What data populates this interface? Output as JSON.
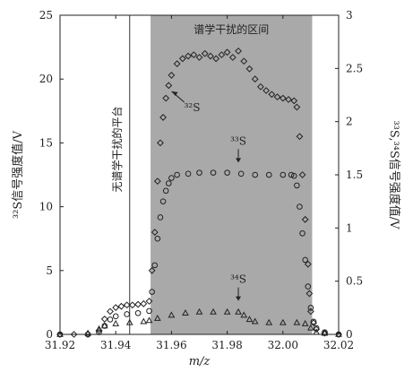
{
  "chart_data": {
    "type": "scatter",
    "xlabel": "m/z",
    "ylabel_left": "³²S信号强度值/V",
    "ylabel_right": "³³S,³⁴S信号强度值/V",
    "xlim": [
      31.92,
      32.02
    ],
    "ylim_left": [
      0,
      25
    ],
    "ylim_right": [
      0,
      3
    ],
    "x_ticks": [
      "31.92",
      "31.94",
      "31.96",
      "31.98",
      "32.00",
      "32.02"
    ],
    "y_left_ticks": [
      "0",
      "5",
      "10",
      "15",
      "20",
      "25"
    ],
    "y_right_ticks": [
      "0",
      "0.5",
      "1",
      "1.5",
      "2",
      "2.5",
      "3"
    ],
    "shaded_region": {
      "x0": 31.9525,
      "x1": 32.0105,
      "label": "谱学干扰的区间",
      "color": "#a9a9a9"
    },
    "vline": {
      "x": 31.945,
      "label": "无谱学干扰的平台"
    },
    "series": [
      {
        "name": "³²S",
        "axis": "left",
        "marker": "diamond",
        "points": [
          [
            31.92,
            0
          ],
          [
            31.925,
            0
          ],
          [
            31.93,
            0
          ],
          [
            31.934,
            0.3
          ],
          [
            31.936,
            1.2
          ],
          [
            31.938,
            1.8
          ],
          [
            31.94,
            2.1
          ],
          [
            31.942,
            2.2
          ],
          [
            31.944,
            2.3
          ],
          [
            31.946,
            2.3
          ],
          [
            31.948,
            2.35
          ],
          [
            31.95,
            2.4
          ],
          [
            31.952,
            2.6
          ],
          [
            31.953,
            5
          ],
          [
            31.954,
            8
          ],
          [
            31.955,
            12
          ],
          [
            31.956,
            15
          ],
          [
            31.957,
            17
          ],
          [
            31.958,
            18.5
          ],
          [
            31.959,
            19.5
          ],
          [
            31.96,
            20.3
          ],
          [
            31.962,
            21.2
          ],
          [
            31.964,
            21.6
          ],
          [
            31.966,
            21.8
          ],
          [
            31.968,
            21.9
          ],
          [
            31.97,
            21.7
          ],
          [
            31.972,
            22
          ],
          [
            31.974,
            21.8
          ],
          [
            31.976,
            21.6
          ],
          [
            31.978,
            21.9
          ],
          [
            31.98,
            22.1
          ],
          [
            31.982,
            21.7
          ],
          [
            31.984,
            22.2
          ],
          [
            31.986,
            21.4
          ],
          [
            31.988,
            20.8
          ],
          [
            31.99,
            20
          ],
          [
            31.992,
            19.4
          ],
          [
            31.994,
            19.1
          ],
          [
            31.996,
            18.8
          ],
          [
            31.998,
            18.6
          ],
          [
            32.0,
            18.5
          ],
          [
            32.002,
            18.4
          ],
          [
            32.004,
            18.3
          ],
          [
            32.005,
            17.8
          ],
          [
            32.006,
            15.5
          ],
          [
            32.007,
            12.5
          ],
          [
            32.008,
            9
          ],
          [
            32.009,
            5.5
          ],
          [
            32.0095,
            3.2
          ],
          [
            32.01,
            1.8
          ],
          [
            32.011,
            0.9
          ],
          [
            32.012,
            0.4
          ],
          [
            32.015,
            0.1
          ],
          [
            32.02,
            0
          ]
        ]
      },
      {
        "name": "³³S",
        "axis": "right",
        "marker": "circle",
        "points": [
          [
            31.92,
            0
          ],
          [
            31.93,
            0
          ],
          [
            31.934,
            0.02
          ],
          [
            31.936,
            0.08
          ],
          [
            31.938,
            0.14
          ],
          [
            31.94,
            0.17
          ],
          [
            31.944,
            0.19
          ],
          [
            31.948,
            0.2
          ],
          [
            31.952,
            0.22
          ],
          [
            31.953,
            0.4
          ],
          [
            31.954,
            0.65
          ],
          [
            31.955,
            0.9
          ],
          [
            31.956,
            1.1
          ],
          [
            31.957,
            1.25
          ],
          [
            31.958,
            1.35
          ],
          [
            31.959,
            1.42
          ],
          [
            31.96,
            1.47
          ],
          [
            31.962,
            1.5
          ],
          [
            31.966,
            1.51
          ],
          [
            31.97,
            1.52
          ],
          [
            31.975,
            1.52
          ],
          [
            31.98,
            1.52
          ],
          [
            31.985,
            1.51
          ],
          [
            31.99,
            1.5
          ],
          [
            31.995,
            1.5
          ],
          [
            32.0,
            1.5
          ],
          [
            32.003,
            1.5
          ],
          [
            32.004,
            1.49
          ],
          [
            32.005,
            1.4
          ],
          [
            32.006,
            1.2
          ],
          [
            32.007,
            0.95
          ],
          [
            32.008,
            0.7
          ],
          [
            32.009,
            0.45
          ],
          [
            32.01,
            0.25
          ],
          [
            32.011,
            0.12
          ],
          [
            32.012,
            0.06
          ],
          [
            32.015,
            0.02
          ],
          [
            32.02,
            0
          ]
        ]
      },
      {
        "name": "³⁴S",
        "axis": "right",
        "marker": "triangle",
        "points": [
          [
            31.92,
            0
          ],
          [
            31.93,
            0.01
          ],
          [
            31.934,
            0.05
          ],
          [
            31.936,
            0.08
          ],
          [
            31.94,
            0.1
          ],
          [
            31.945,
            0.11
          ],
          [
            31.95,
            0.12
          ],
          [
            31.952,
            0.13
          ],
          [
            31.955,
            0.15
          ],
          [
            31.96,
            0.18
          ],
          [
            31.965,
            0.2
          ],
          [
            31.97,
            0.21
          ],
          [
            31.975,
            0.21
          ],
          [
            31.98,
            0.21
          ],
          [
            31.984,
            0.21
          ],
          [
            31.986,
            0.18
          ],
          [
            31.988,
            0.14
          ],
          [
            31.99,
            0.12
          ],
          [
            31.995,
            0.11
          ],
          [
            32.0,
            0.11
          ],
          [
            32.005,
            0.11
          ],
          [
            32.008,
            0.1
          ],
          [
            32.01,
            0.06
          ],
          [
            32.012,
            0.02
          ],
          [
            32.015,
            0.01
          ],
          [
            32.02,
            0
          ]
        ]
      }
    ],
    "annotations": [
      {
        "series": "³²S",
        "text": "³²S",
        "x": 31.962,
        "y_right": 2.2
      },
      {
        "series": "³³S",
        "text": "³³S",
        "x": 31.984,
        "y_right": 1.75
      },
      {
        "series": "³⁴S",
        "text": "³⁴S",
        "x": 31.984,
        "y_right": 0.45
      }
    ]
  }
}
